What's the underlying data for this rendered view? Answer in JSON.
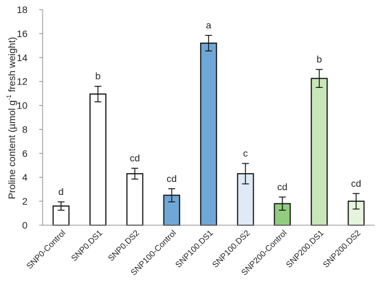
{
  "chart_data": {
    "type": "bar",
    "title": "",
    "xlabel": "",
    "ylabel_parts": [
      "Proline content  (µmol g",
      "-1",
      " fresh weight)"
    ],
    "ylim": [
      0,
      18
    ],
    "yticks": [
      0,
      2,
      4,
      6,
      8,
      10,
      12,
      14,
      16,
      18
    ],
    "ytick_labels": [
      "0",
      "2",
      "4",
      "6",
      "8",
      "10",
      "12",
      "14",
      "16",
      "18"
    ],
    "grid": false,
    "legend": "none",
    "categories": [
      "SNP0-Control",
      "SNP0.DS1",
      "SNP0.DS2",
      "SNP100-Control",
      "SNP100.DS1",
      "SNP100.DS2",
      "SNP200-Control",
      "SNP200.DS1",
      "SNP200.DS2"
    ],
    "values": [
      1.6,
      10.95,
      4.3,
      2.5,
      15.2,
      4.3,
      1.8,
      12.25,
      2.0
    ],
    "errors": [
      0.35,
      0.65,
      0.45,
      0.55,
      0.65,
      0.85,
      0.55,
      0.75,
      0.65
    ],
    "significance": [
      "d",
      "b",
      "cd",
      "cd",
      "a",
      "c",
      "cd",
      "b",
      "cd"
    ],
    "colors": [
      "#ffffff",
      "#ffffff",
      "#ffffff",
      "#6fa8d6",
      "#6fa8d6",
      "#deebf7",
      "#92cd7f",
      "#c9e6b8",
      "#e6f3de"
    ],
    "edge_color": "#111111",
    "axis_color": "#888888"
  }
}
